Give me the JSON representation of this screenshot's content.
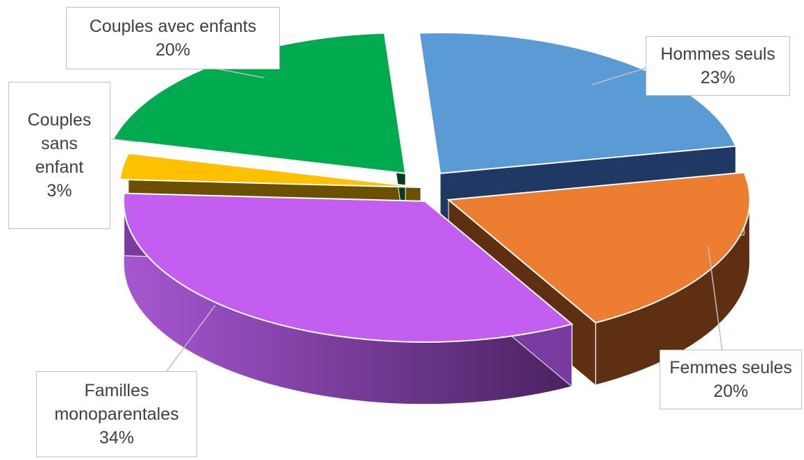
{
  "chart_data": {
    "type": "pie",
    "title": "",
    "slices": [
      {
        "label": "Hommes seuls",
        "value": 23,
        "pct_label": "23%",
        "color": "#5B9BD5",
        "side_color": "#203864"
      },
      {
        "label": "Femmes seules",
        "value": 20,
        "pct_label": "20%",
        "color": "#ED7D31",
        "side_color": "#5E3011"
      },
      {
        "label": "Familles monoparentales",
        "value": 34,
        "pct_label": "34%",
        "color": "#C45EF0",
        "side_color": "#7A3BA0"
      },
      {
        "label": "Couples sans enfant",
        "value": 3,
        "pct_label": "3%",
        "color": "#FFC000",
        "side_color": "#6B5000"
      },
      {
        "label": "Couples avec enfants",
        "value": 20,
        "pct_label": "20%",
        "color": "#00AA4E",
        "side_color": "#0A3D1F"
      }
    ],
    "legend": "none",
    "style": "3d-exploded-pie-with-callouts"
  }
}
